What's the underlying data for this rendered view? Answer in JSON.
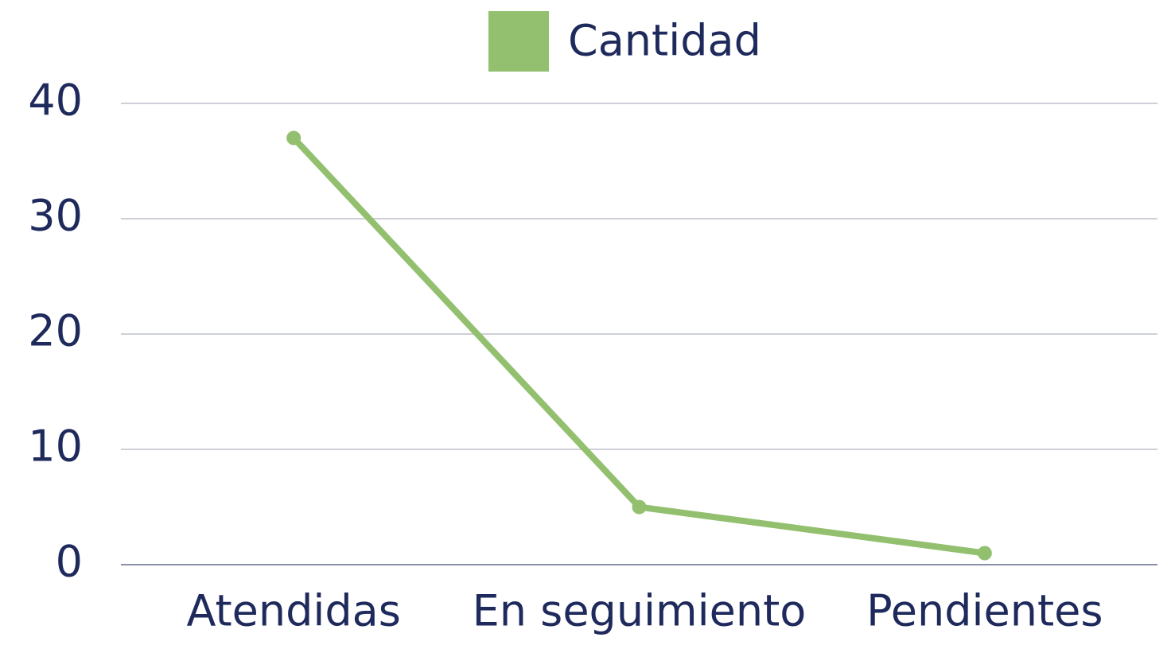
{
  "chart_data": {
    "type": "line",
    "categories": [
      "Atendidas",
      "En seguimiento",
      "Pendientes"
    ],
    "series": [
      {
        "name": "Cantidad",
        "color": "#93c06f",
        "values": [
          37,
          5,
          1
        ]
      }
    ],
    "ylim": [
      0,
      40
    ],
    "yticks": [
      0,
      10,
      20,
      30,
      40
    ],
    "grid": true,
    "legend": "top"
  }
}
